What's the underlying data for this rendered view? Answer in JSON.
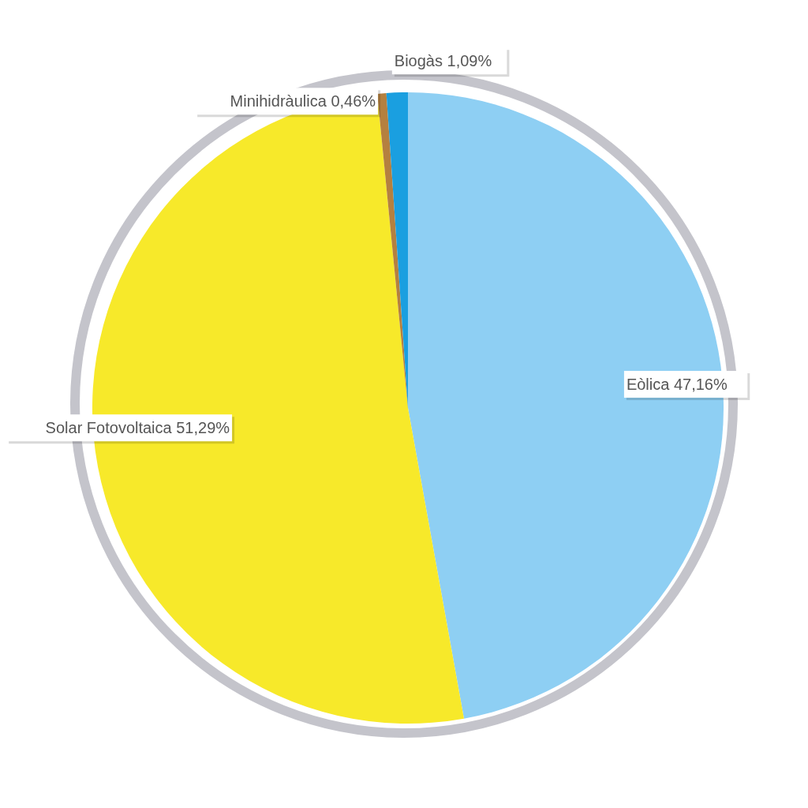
{
  "chart_data": {
    "type": "pie",
    "categories": [
      "Eòlica",
      "Solar Fotovoltaica",
      "Minihidràulica",
      "Biogàs"
    ],
    "values": [
      47.16,
      51.29,
      0.46,
      1.09
    ],
    "colors": [
      "#8ecff3",
      "#f7e92a",
      "#b5803f",
      "#1a9fe0"
    ],
    "value_labels": [
      "47,16%",
      "51,29%",
      "0,46%",
      "1,09%"
    ],
    "legend": false
  }
}
